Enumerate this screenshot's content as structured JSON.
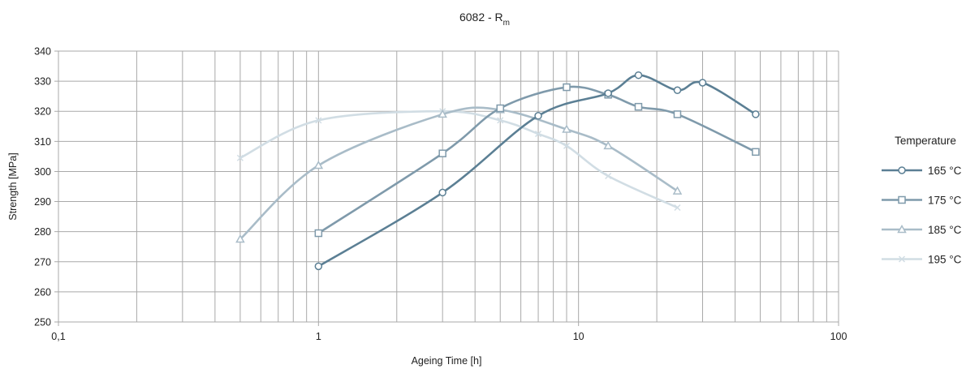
{
  "chart_data": {
    "type": "line",
    "title": "6082 - R",
    "title_subscript": "m",
    "xlabel": "Ageing Time [h]",
    "ylabel": "Strength [MPa]",
    "x_scale": "log",
    "xlim": [
      0.1,
      100
    ],
    "ylim": [
      250,
      340
    ],
    "x_ticks": [
      {
        "value": 0.1,
        "label": "0,1"
      },
      {
        "value": 1,
        "label": "1"
      },
      {
        "value": 10,
        "label": "10"
      },
      {
        "value": 100,
        "label": "100"
      }
    ],
    "y_ticks": [
      {
        "value": 250,
        "label": "250"
      },
      {
        "value": 260,
        "label": "260"
      },
      {
        "value": 270,
        "label": "270"
      },
      {
        "value": 280,
        "label": "280"
      },
      {
        "value": 290,
        "label": "290"
      },
      {
        "value": 300,
        "label": "300"
      },
      {
        "value": 310,
        "label": "310"
      },
      {
        "value": 320,
        "label": "320"
      },
      {
        "value": 330,
        "label": "330"
      },
      {
        "value": 340,
        "label": "340"
      }
    ],
    "grid": true,
    "legend": {
      "title": "Temperature",
      "position": "right"
    },
    "series": [
      {
        "name": "165 °C",
        "marker": "circle",
        "color": "#5b7f94",
        "points": [
          [
            1,
            268.5
          ],
          [
            3,
            293
          ],
          [
            7,
            318.5
          ],
          [
            13,
            326
          ],
          [
            17,
            332
          ],
          [
            24,
            327
          ],
          [
            30,
            329.5
          ],
          [
            48,
            319
          ]
        ]
      },
      {
        "name": "175 °C",
        "marker": "square",
        "color": "#7f9aab",
        "points": [
          [
            1,
            279.5
          ],
          [
            3,
            306
          ],
          [
            5,
            321
          ],
          [
            9,
            328
          ],
          [
            13,
            325.5
          ],
          [
            17,
            321.5
          ],
          [
            24,
            319
          ],
          [
            48,
            306.5
          ]
        ]
      },
      {
        "name": "185 °C",
        "marker": "triangle",
        "color": "#a9bcc8",
        "points": [
          [
            0.5,
            277.5
          ],
          [
            1,
            302
          ],
          [
            3,
            319
          ],
          [
            5,
            320.5
          ],
          [
            9,
            314
          ],
          [
            13,
            308.5
          ],
          [
            24,
            293.5
          ]
        ]
      },
      {
        "name": "195 °C",
        "marker": "x",
        "color": "#d1dde4",
        "points": [
          [
            0.5,
            304.5
          ],
          [
            1,
            317
          ],
          [
            3,
            320
          ],
          [
            5,
            317
          ],
          [
            7,
            312.5
          ],
          [
            9,
            308.5
          ],
          [
            13,
            298.5
          ],
          [
            24,
            288
          ]
        ]
      }
    ]
  }
}
